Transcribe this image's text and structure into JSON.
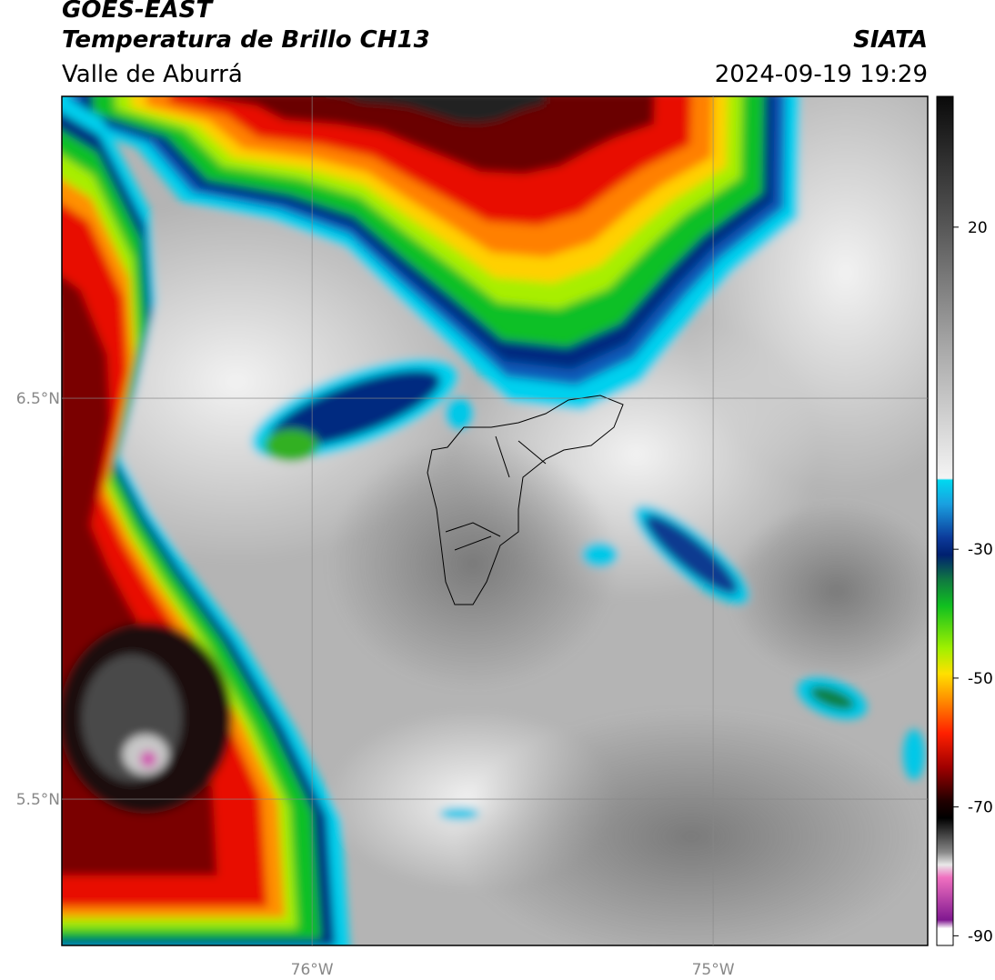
{
  "header": {
    "satellite": "GOES-EAST",
    "product": "Temperatura de Brillo CH13",
    "region": "Valle de Aburrá",
    "source": "SIATA",
    "datetime": "2024-09-19 19:29"
  },
  "map": {
    "lat_range": [
      5.135,
      7.253
    ],
    "lon_range": [
      -76.624,
      -74.465
    ],
    "lat_ticks": [
      {
        "value": 6.5,
        "label": "6.5°N"
      },
      {
        "value": 5.5,
        "label": "5.5°N"
      }
    ],
    "lon_ticks": [
      {
        "value": -76,
        "label": "76°W"
      },
      {
        "value": -75,
        "label": "75°W"
      }
    ]
  },
  "colorbar": {
    "range": [
      -91.5,
      40.3
    ],
    "ticks": [
      20,
      -30,
      -50,
      -70,
      -90
    ]
  }
}
